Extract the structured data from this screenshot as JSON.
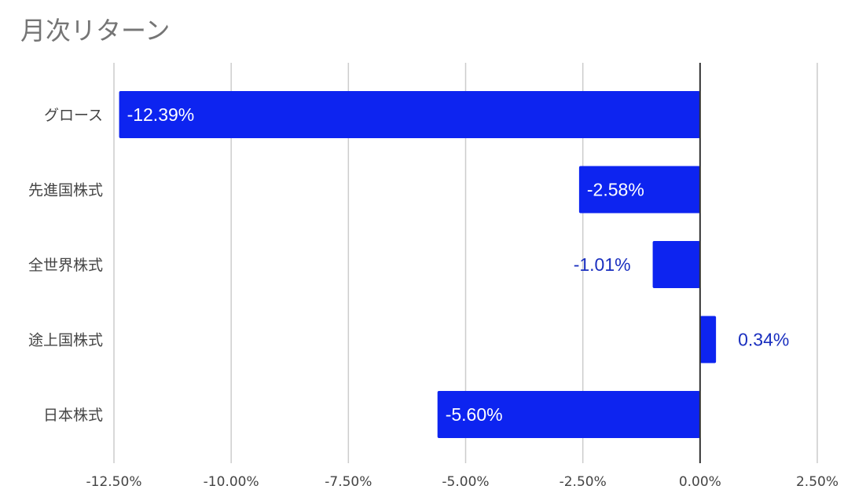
{
  "chart_data": {
    "type": "bar",
    "orientation": "horizontal",
    "title": "月次リターン",
    "categories": [
      "グロース",
      "先進国株式",
      "全世界株式",
      "途上国株式",
      "日本株式"
    ],
    "values": [
      -12.39,
      -2.58,
      -1.01,
      0.34,
      -5.6
    ],
    "value_labels": [
      "-12.39%",
      "-2.58%",
      "-1.01%",
      "0.34%",
      "-5.60%"
    ],
    "x_ticks": [
      -12.5,
      -10,
      -7.5,
      -5,
      -2.5,
      0,
      2.5
    ],
    "x_tick_labels": [
      "-12.50%",
      "-10.00%",
      "-7.50%",
      "-5.00%",
      "-2.50%",
      "0.00%",
      "2.50%"
    ],
    "xlim": [
      -12.5,
      2.5
    ],
    "grid": true,
    "bar_color": "#0d24f0",
    "label_color_inside": "#ffffff",
    "label_color_outside": "#1a2fbf",
    "xlabel": "",
    "ylabel": ""
  }
}
